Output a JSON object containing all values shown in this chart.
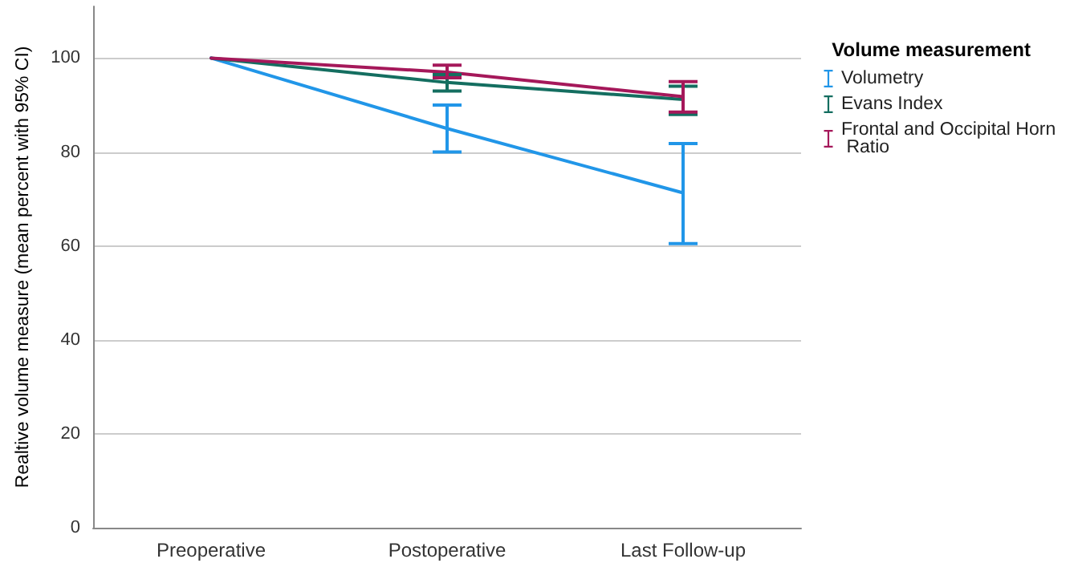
{
  "chart_data": {
    "type": "line",
    "ylabel": "Realtive volume measure (mean percent with 95% CI)",
    "legend_title": "Volume measurement",
    "categories": [
      "Preoperative",
      "Postoperative",
      "Last Follow-up"
    ],
    "series": [
      {
        "name": "Volumetry",
        "color": "#2196e8",
        "values": [
          100,
          85,
          71.3
        ],
        "errors": [
          null,
          [
            80,
            90
          ],
          [
            60.5,
            81.8
          ]
        ]
      },
      {
        "name": "Evans Index",
        "color": "#146e60",
        "values": [
          100,
          94.8,
          91.2
        ],
        "errors": [
          null,
          [
            93,
            96.5
          ],
          [
            88,
            94
          ]
        ]
      },
      {
        "name": "Frontal and Occipital Horn Ratio",
        "color": "#a5185a",
        "values": [
          100,
          97,
          91.8
        ],
        "errors": [
          null,
          [
            95.8,
            98.5
          ],
          [
            88.5,
            95
          ]
        ]
      }
    ],
    "ylim": [
      0,
      111
    ],
    "yticks": [
      0,
      20,
      40,
      60,
      80,
      100
    ],
    "grid": "y",
    "legend": "right",
    "marker": "none",
    "line_style": "solid"
  }
}
